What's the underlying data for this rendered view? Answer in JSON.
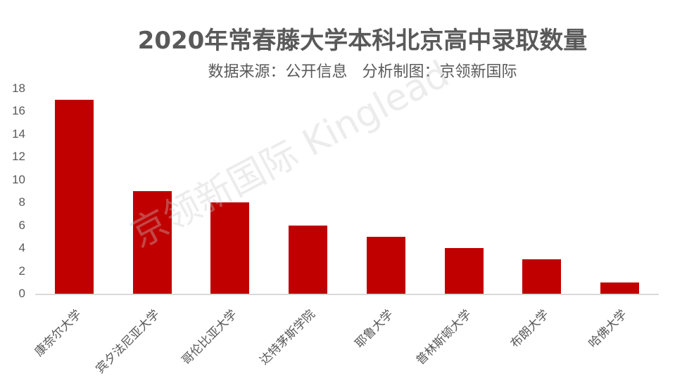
{
  "header": {
    "title": "2020年常春藤大学本科北京高中录取数量",
    "subtitle": "数据来源：公开信息   分析制图：京领新国际"
  },
  "watermark": "京领新国际 Kinglead",
  "colors": {
    "bar": "#c00000",
    "text": "#595959",
    "axis": "#d9d9d9"
  },
  "chart_data": {
    "type": "bar",
    "title": "2020年常春藤大学本科北京高中录取数量",
    "subtitle": "数据来源：公开信息   分析制图：京领新国际",
    "categories": [
      "康奈尔大学",
      "宾夕法尼亚大学",
      "哥伦比亚大学",
      "达特茅斯学院",
      "耶鲁大学",
      "普林斯顿大学",
      "布朗大学",
      "哈佛大学"
    ],
    "values": [
      17,
      9,
      8,
      6,
      5,
      4,
      3,
      1
    ],
    "xlabel": "",
    "ylabel": "",
    "ylim": [
      0,
      18
    ],
    "yticks": [
      "0",
      "2",
      "4",
      "6",
      "8",
      "10",
      "12",
      "14",
      "16",
      "18"
    ],
    "grid": false,
    "legend": "none"
  }
}
